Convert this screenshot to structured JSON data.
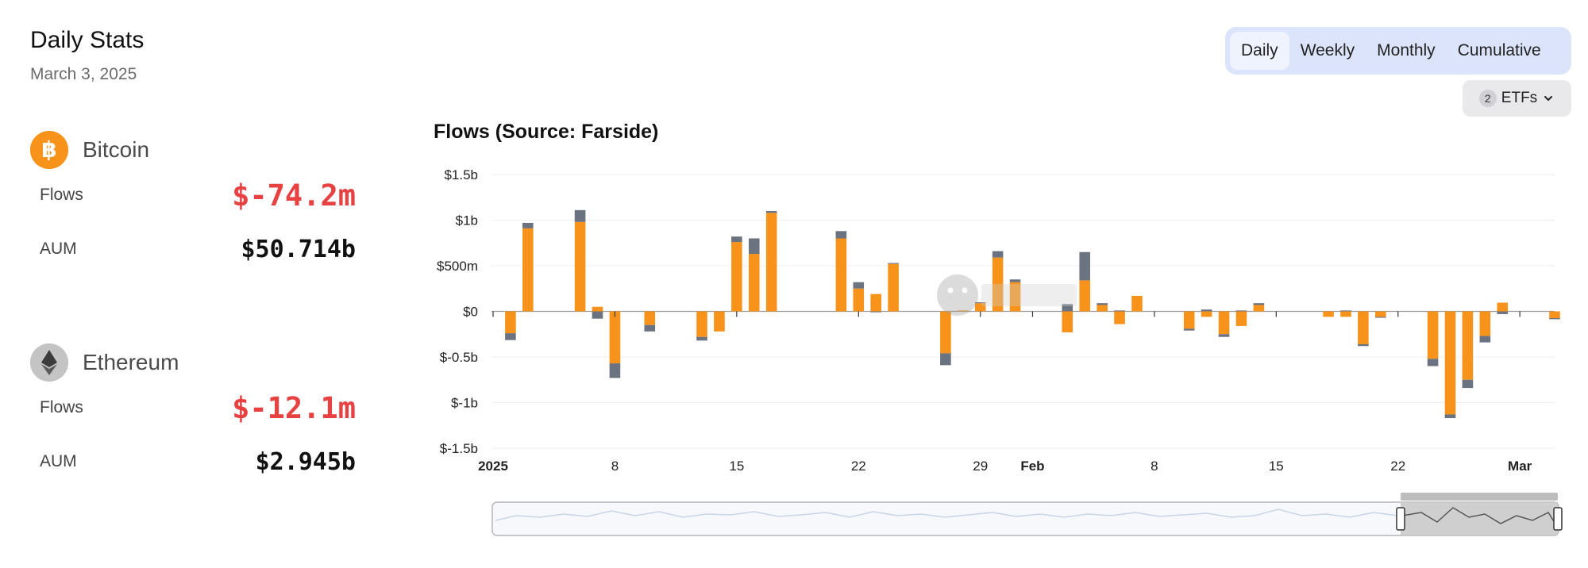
{
  "stats": {
    "title": "Daily Stats",
    "date": "March 3, 2025",
    "assets": [
      {
        "name": "Bitcoin",
        "icon": "bitcoin-icon",
        "icon_color": "#f7931a",
        "flows_label": "Flows",
        "flows_value": "$-74.2m",
        "aum_label": "AUM",
        "aum_value": "$50.714b"
      },
      {
        "name": "Ethereum",
        "icon": "ethereum-icon",
        "icon_color": "#b9b9b9",
        "flows_label": "Flows",
        "flows_value": "$-12.1m",
        "aum_label": "AUM",
        "aum_value": "$2.945b"
      }
    ]
  },
  "controls": {
    "periods": [
      "Daily",
      "Weekly",
      "Monthly",
      "Cumulative"
    ],
    "active_period": "Daily",
    "etf_count": "2",
    "etf_label": "ETFs"
  },
  "colors": {
    "bitcoin": "#f7931a",
    "ethereum": "#6b7280",
    "negative": "#e84142",
    "toggle_bg": "#dbe4fb"
  },
  "chart_data": {
    "type": "bar",
    "title": "Flows (Source: Farside)",
    "stacked": true,
    "ylim": [
      -1500,
      1500
    ],
    "y_ticks": [
      {
        "value": 1500,
        "label": "$1.5b"
      },
      {
        "value": 1000,
        "label": "$1b"
      },
      {
        "value": 500,
        "label": "$500m"
      },
      {
        "value": 0,
        "label": "$0"
      },
      {
        "value": -500,
        "label": "$-0.5b"
      },
      {
        "value": -1000,
        "label": "$-1b"
      },
      {
        "value": -1500,
        "label": "$-1.5b"
      }
    ],
    "x_range": [
      "2025-01-01",
      "2025-03-03"
    ],
    "x_ticks": [
      {
        "date": "2025-01-01",
        "label": "2025",
        "bold": true
      },
      {
        "date": "2025-01-08",
        "label": "8",
        "bold": false
      },
      {
        "date": "2025-01-15",
        "label": "15",
        "bold": false
      },
      {
        "date": "2025-01-22",
        "label": "22",
        "bold": false
      },
      {
        "date": "2025-01-29",
        "label": "29",
        "bold": false
      },
      {
        "date": "2025-02-01",
        "label": "Feb",
        "bold": true
      },
      {
        "date": "2025-02-08",
        "label": "8",
        "bold": false
      },
      {
        "date": "2025-02-15",
        "label": "15",
        "bold": false
      },
      {
        "date": "2025-02-22",
        "label": "22",
        "bold": false
      },
      {
        "date": "2025-03-01",
        "label": "Mar",
        "bold": true
      }
    ],
    "series_colors": [
      "#f7931a",
      "#6b7280"
    ],
    "bars": [
      {
        "date": "2025-01-02",
        "btc": -240,
        "eth": -75
      },
      {
        "date": "2025-01-03",
        "btc": 910,
        "eth": 60
      },
      {
        "date": "2025-01-06",
        "btc": 980,
        "eth": 130
      },
      {
        "date": "2025-01-07",
        "btc": 50,
        "eth": -80
      },
      {
        "date": "2025-01-08",
        "btc": -570,
        "eth": -160
      },
      {
        "date": "2025-01-10",
        "btc": -150,
        "eth": -70
      },
      {
        "date": "2025-01-13",
        "btc": -280,
        "eth": -40
      },
      {
        "date": "2025-01-14",
        "btc": -220,
        "eth": 0
      },
      {
        "date": "2025-01-15",
        "btc": 760,
        "eth": 60
      },
      {
        "date": "2025-01-16",
        "btc": 630,
        "eth": 170
      },
      {
        "date": "2025-01-17",
        "btc": 1080,
        "eth": 20
      },
      {
        "date": "2025-01-21",
        "btc": 800,
        "eth": 80
      },
      {
        "date": "2025-01-22",
        "btc": 250,
        "eth": 70
      },
      {
        "date": "2025-01-23",
        "btc": 190,
        "eth": -10
      },
      {
        "date": "2025-01-24",
        "btc": 520,
        "eth": 10
      },
      {
        "date": "2025-01-27",
        "btc": -460,
        "eth": -130
      },
      {
        "date": "2025-01-28",
        "btc": 10,
        "eth": 0
      },
      {
        "date": "2025-01-29",
        "btc": 90,
        "eth": 10
      },
      {
        "date": "2025-01-30",
        "btc": 590,
        "eth": 70
      },
      {
        "date": "2025-01-31",
        "btc": 320,
        "eth": 30
      },
      {
        "date": "2025-02-03",
        "btc": -230,
        "eth": 80
      },
      {
        "date": "2025-02-04",
        "btc": 340,
        "eth": 310
      },
      {
        "date": "2025-02-05",
        "btc": 70,
        "eth": 20
      },
      {
        "date": "2025-02-06",
        "btc": -140,
        "eth": 10
      },
      {
        "date": "2025-02-07",
        "btc": 170,
        "eth": 0
      },
      {
        "date": "2025-02-10",
        "btc": -190,
        "eth": -20
      },
      {
        "date": "2025-02-11",
        "btc": -60,
        "eth": 20
      },
      {
        "date": "2025-02-12",
        "btc": -250,
        "eth": -30
      },
      {
        "date": "2025-02-13",
        "btc": -160,
        "eth": 10
      },
      {
        "date": "2025-02-14",
        "btc": 70,
        "eth": 20
      },
      {
        "date": "2025-02-18",
        "btc": -60,
        "eth": 0
      },
      {
        "date": "2025-02-19",
        "btc": -60,
        "eth": 10
      },
      {
        "date": "2025-02-20",
        "btc": -360,
        "eth": -20
      },
      {
        "date": "2025-02-21",
        "btc": -60,
        "eth": -10
      },
      {
        "date": "2025-02-24",
        "btc": -520,
        "eth": -80
      },
      {
        "date": "2025-02-25",
        "btc": -1130,
        "eth": -40
      },
      {
        "date": "2025-02-26",
        "btc": -750,
        "eth": -90
      },
      {
        "date": "2025-02-27",
        "btc": -270,
        "eth": -70
      },
      {
        "date": "2025-02-28",
        "btc": 95,
        "eth": -30
      },
      {
        "date": "2025-03-03",
        "btc": -74,
        "eth": -12
      }
    ]
  }
}
